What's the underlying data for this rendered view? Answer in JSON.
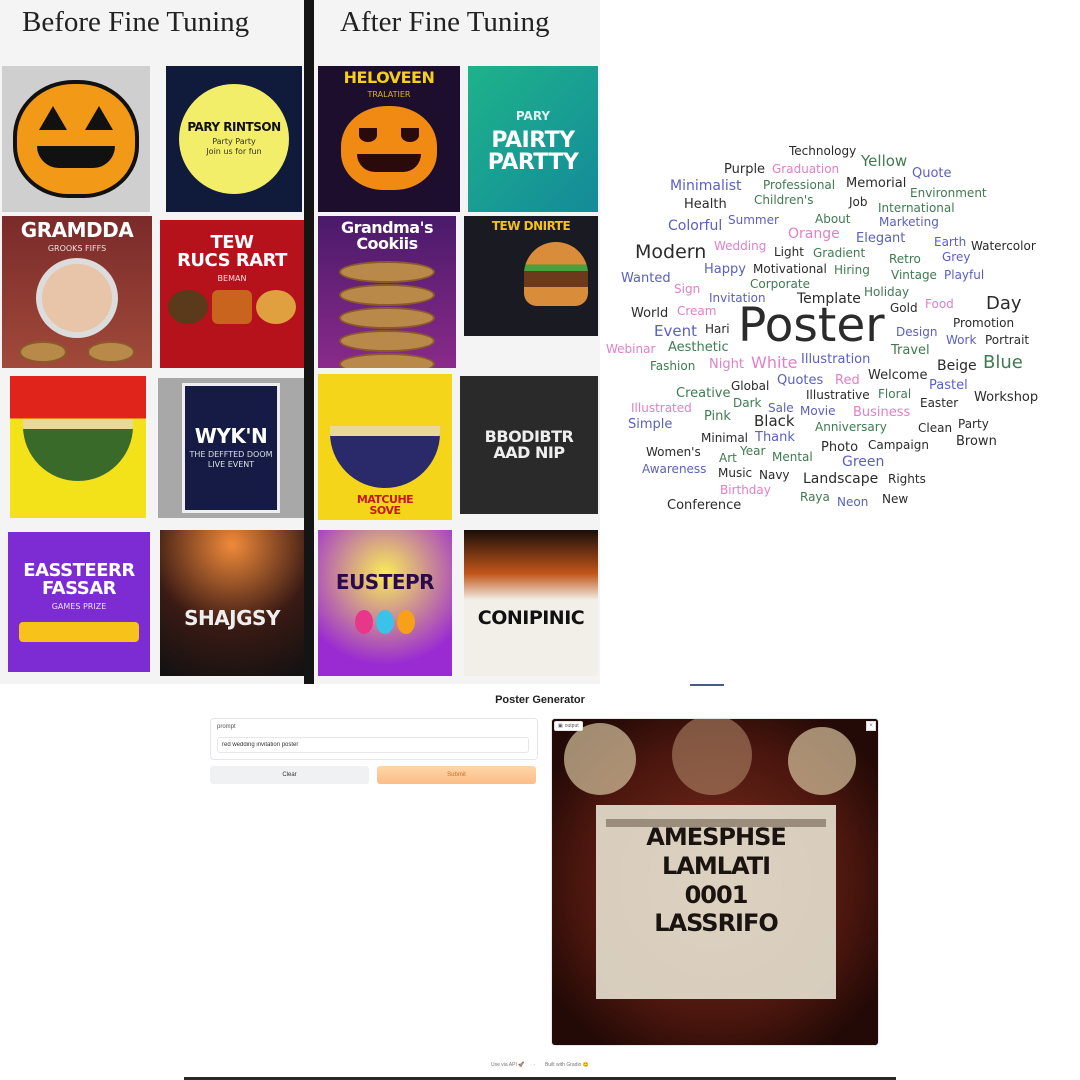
{
  "comparison": {
    "before_title": "Before Fine Tuning",
    "after_title": "After Fine Tuning",
    "before_posters": [
      {
        "id": "halloween",
        "text": "",
        "sub": ""
      },
      {
        "id": "party",
        "text": "PARY RINTSON",
        "sub": "Party Party\nJoin us for fun"
      },
      {
        "id": "grandma",
        "text": "GRAMDDA",
        "sub": "GROOKS  FIFFS"
      },
      {
        "id": "restaurant",
        "text": "TEW\nRUCS RART",
        "sub": "BEMAN"
      },
      {
        "id": "noodle",
        "text": "",
        "sub": ""
      },
      {
        "id": "wykn",
        "text": "WYK'N",
        "sub": "THE DEFFTED DOOM\nLIVE EVENT"
      },
      {
        "id": "easter",
        "text": "EASSTEERR\nFASSAR",
        "sub": "GAMES  PRIZE"
      },
      {
        "id": "concert",
        "text": "SHAJGSY",
        "sub": ""
      }
    ],
    "after_posters": [
      {
        "id": "halloween",
        "text": "HELOVEEN",
        "sub": "TRALATIER"
      },
      {
        "id": "party",
        "text": "PAIRTY\nPARTTY",
        "sub": "PARY"
      },
      {
        "id": "cookies",
        "text": "Grandma's\nCookiis",
        "sub": ""
      },
      {
        "id": "burger",
        "text": "TEW DNIRTE",
        "sub": ""
      },
      {
        "id": "noodle",
        "text": "MATCUHE\nSOVE",
        "sub": ""
      },
      {
        "id": "dark",
        "text": "BBODIBTR\nAAD NIP",
        "sub": ""
      },
      {
        "id": "easter",
        "text": "EUSTEPR",
        "sub": ""
      },
      {
        "id": "concert",
        "text": "CONIPINIC",
        "sub": ""
      }
    ]
  },
  "word_cloud": {
    "words": [
      {
        "t": "Technology",
        "c": "c1"
      },
      {
        "t": "Yellow",
        "c": "c3"
      },
      {
        "t": "Purple",
        "c": "c1"
      },
      {
        "t": "Graduation",
        "c": "c4"
      },
      {
        "t": "Quote",
        "c": "c2"
      },
      {
        "t": "Minimalist",
        "c": "c2"
      },
      {
        "t": "Professional",
        "c": "c3"
      },
      {
        "t": "Memorial",
        "c": "c1"
      },
      {
        "t": "Environment",
        "c": "c3"
      },
      {
        "t": "Health",
        "c": "c1"
      },
      {
        "t": "Children's",
        "c": "c3"
      },
      {
        "t": "Job",
        "c": "c1"
      },
      {
        "t": "International",
        "c": "c3"
      },
      {
        "t": "Colorful",
        "c": "c2"
      },
      {
        "t": "Summer",
        "c": "c2"
      },
      {
        "t": "About",
        "c": "c3"
      },
      {
        "t": "Marketing",
        "c": "c2"
      },
      {
        "t": "Orange",
        "c": "c4"
      },
      {
        "t": "Elegant",
        "c": "c2"
      },
      {
        "t": "Earth",
        "c": "c2"
      },
      {
        "t": "Watercolor",
        "c": "c1"
      },
      {
        "t": "Modern",
        "c": "c1"
      },
      {
        "t": "Wedding",
        "c": "c4"
      },
      {
        "t": "Light",
        "c": "c1"
      },
      {
        "t": "Gradient",
        "c": "c3"
      },
      {
        "t": "Grey",
        "c": "c2"
      },
      {
        "t": "Retro",
        "c": "c3"
      },
      {
        "t": "Happy",
        "c": "c2"
      },
      {
        "t": "Motivational",
        "c": "c1"
      },
      {
        "t": "Hiring",
        "c": "c3"
      },
      {
        "t": "Vintage",
        "c": "c3"
      },
      {
        "t": "Playful",
        "c": "c2"
      },
      {
        "t": "Wanted",
        "c": "c2"
      },
      {
        "t": "Corporate",
        "c": "c3"
      },
      {
        "t": "Sign",
        "c": "c4"
      },
      {
        "t": "Holiday",
        "c": "c3"
      },
      {
        "t": "Invitation",
        "c": "c2"
      },
      {
        "t": "Template",
        "c": "c1"
      },
      {
        "t": "Food",
        "c": "c4"
      },
      {
        "t": "Day",
        "c": "c1"
      },
      {
        "t": "Gold",
        "c": "c1"
      },
      {
        "t": "World",
        "c": "c1"
      },
      {
        "t": "Cream",
        "c": "c4"
      },
      {
        "t": "Poster",
        "c": "c1"
      },
      {
        "t": "Promotion",
        "c": "c1"
      },
      {
        "t": "Event",
        "c": "c2"
      },
      {
        "t": "Hari",
        "c": "c1"
      },
      {
        "t": "Design",
        "c": "c2"
      },
      {
        "t": "Work",
        "c": "c2"
      },
      {
        "t": "Portrait",
        "c": "c1"
      },
      {
        "t": "Webinar",
        "c": "c4"
      },
      {
        "t": "Aesthetic",
        "c": "c3"
      },
      {
        "t": "Travel",
        "c": "c3"
      },
      {
        "t": "Fashion",
        "c": "c3"
      },
      {
        "t": "Night",
        "c": "c4"
      },
      {
        "t": "White",
        "c": "c4"
      },
      {
        "t": "Illustration",
        "c": "c2"
      },
      {
        "t": "Beige",
        "c": "c1"
      },
      {
        "t": "Blue",
        "c": "c3"
      },
      {
        "t": "Quotes",
        "c": "c2"
      },
      {
        "t": "Red",
        "c": "c4"
      },
      {
        "t": "Welcome",
        "c": "c1"
      },
      {
        "t": "Creative",
        "c": "c3"
      },
      {
        "t": "Global",
        "c": "c1"
      },
      {
        "t": "Pastel",
        "c": "c2"
      },
      {
        "t": "Illustrative",
        "c": "c1"
      },
      {
        "t": "Floral",
        "c": "c3"
      },
      {
        "t": "Workshop",
        "c": "c1"
      },
      {
        "t": "Illustrated",
        "c": "c4"
      },
      {
        "t": "Dark",
        "c": "c3"
      },
      {
        "t": "Easter",
        "c": "c1"
      },
      {
        "t": "Sale",
        "c": "c2"
      },
      {
        "t": "Movie",
        "c": "c2"
      },
      {
        "t": "Business",
        "c": "c4"
      },
      {
        "t": "Pink",
        "c": "c3"
      },
      {
        "t": "Black",
        "c": "c1"
      },
      {
        "t": "Simple",
        "c": "c2"
      },
      {
        "t": "Anniversary",
        "c": "c3"
      },
      {
        "t": "Clean",
        "c": "c1"
      },
      {
        "t": "Party",
        "c": "c1"
      },
      {
        "t": "Minimal",
        "c": "c1"
      },
      {
        "t": "Thank",
        "c": "c2"
      },
      {
        "t": "Brown",
        "c": "c1"
      },
      {
        "t": "Photo",
        "c": "c1"
      },
      {
        "t": "Campaign",
        "c": "c1"
      },
      {
        "t": "Women's",
        "c": "c1"
      },
      {
        "t": "Year",
        "c": "c3"
      },
      {
        "t": "Art",
        "c": "c3"
      },
      {
        "t": "Mental",
        "c": "c3"
      },
      {
        "t": "Green",
        "c": "c2"
      },
      {
        "t": "Awareness",
        "c": "c2"
      },
      {
        "t": "Music",
        "c": "c1"
      },
      {
        "t": "Navy",
        "c": "c1"
      },
      {
        "t": "Landscape",
        "c": "c1"
      },
      {
        "t": "Rights",
        "c": "c1"
      },
      {
        "t": "Birthday",
        "c": "c4"
      },
      {
        "t": "Raya",
        "c": "c3"
      },
      {
        "t": "Neon",
        "c": "c2"
      },
      {
        "t": "New",
        "c": "c1"
      },
      {
        "t": "Conference",
        "c": "c1"
      }
    ]
  },
  "app": {
    "title": "Poster Generator",
    "prompt_label": "prompt",
    "prompt_value": "red wedding invitation poster",
    "clear_label": "Clear",
    "submit_label": "Submit",
    "output_label": "output",
    "output_art_text": "AMESPHSE\nLAMLATI\n0001\nLASSRIFO",
    "footer_api": "Use via API 🚀",
    "footer_built": "Built with Gradio 😊"
  }
}
